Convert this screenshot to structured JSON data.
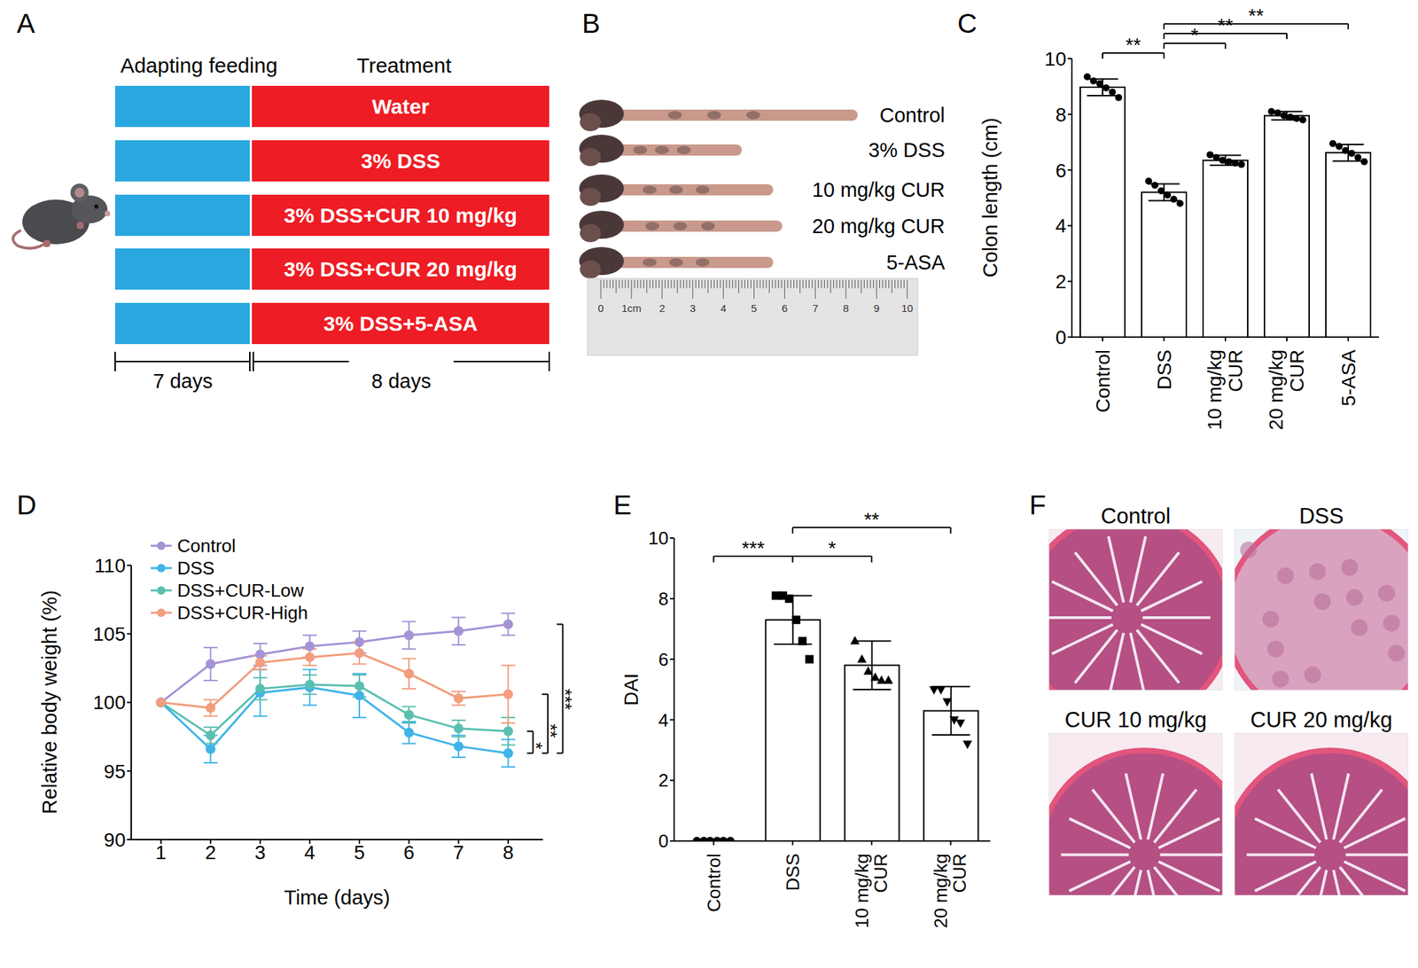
{
  "panel_labels": [
    "A",
    "B",
    "C",
    "D",
    "E",
    "F"
  ],
  "diagram": {
    "headers": [
      "Adapting feeding",
      "Treatment"
    ],
    "groups": [
      "Water",
      "3% DSS",
      "3% DSS+CUR 10 mg/kg",
      "3% DSS+CUR 20 mg/kg",
      "3% DSS+5-ASA"
    ],
    "durations": [
      "7 days",
      "8 days"
    ]
  },
  "photo": {
    "labels": [
      "Control",
      "3% DSS",
      "10 mg/kg CUR",
      "20 mg/kg CUR",
      "5-ASA"
    ],
    "ruler_labels": [
      "0",
      "1cm",
      "2",
      "3",
      "4",
      "5",
      "6",
      "7",
      "8",
      "9",
      "10"
    ]
  },
  "chart_data": [
    {
      "type": "bar",
      "y_label": "Colon length (cm)",
      "categories": [
        "Control",
        "DSS",
        "10 mg/kg CUR",
        "20 mg/kg CUR",
        "5-ASA"
      ],
      "values": [
        8.97,
        5.2,
        6.35,
        7.95,
        6.62
      ],
      "errors": [
        0.3,
        0.3,
        0.18,
        0.15,
        0.3
      ],
      "color": "#ffffff",
      "marker": "circle",
      "points": [
        {
          "category": "Control",
          "marker": "circle",
          "values": [
            9.35,
            9.2,
            9.1,
            8.95,
            8.8,
            8.6
          ]
        },
        {
          "category": "DSS",
          "marker": "circle",
          "values": [
            5.6,
            5.45,
            5.25,
            5.1,
            4.95,
            4.8
          ]
        },
        {
          "category": "10 mg/kg CUR",
          "marker": "circle",
          "values": [
            6.55,
            6.45,
            6.35,
            6.3,
            6.25,
            6.2
          ]
        },
        {
          "category": "20 mg/kg CUR",
          "marker": "circle",
          "values": [
            8.1,
            8.05,
            7.95,
            7.9,
            7.85,
            7.8
          ]
        },
        {
          "category": "5-ASA",
          "marker": "circle",
          "values": [
            6.95,
            6.85,
            6.7,
            6.6,
            6.45,
            6.3
          ]
        }
      ],
      "ylim": [
        0,
        10
      ],
      "yticks": [
        0,
        2,
        4,
        6,
        8,
        10
      ],
      "significance": [
        {
          "from": "Control",
          "to": "DSS",
          "label": "**"
        },
        {
          "from": "DSS",
          "to": "10 mg/kg CUR",
          "label": "*"
        },
        {
          "from": "DSS",
          "to": "20 mg/kg CUR",
          "label": "**"
        },
        {
          "from": "DSS",
          "to": "5-ASA",
          "label": "**"
        }
      ]
    },
    {
      "type": "line",
      "x_label": "Time (days)",
      "y_label": "Relative body weight (%)",
      "x": [
        1,
        2,
        3,
        4,
        5,
        6,
        7,
        8
      ],
      "series": [
        {
          "name": "Control",
          "color": "#a593d6",
          "values": [
            100,
            102.8,
            103.5,
            104.1,
            104.4,
            104.9,
            105.2,
            105.7
          ],
          "errors": [
            0,
            1.2,
            0.8,
            0.8,
            0.8,
            1.0,
            1.0,
            0.8
          ]
        },
        {
          "name": "DSS",
          "color": "#3fb4e8",
          "values": [
            100,
            96.6,
            100.7,
            101.1,
            100.5,
            97.8,
            96.8,
            96.3
          ],
          "errors": [
            0,
            1.0,
            1.7,
            1.3,
            1.6,
            0.8,
            0.8,
            1.0
          ]
        },
        {
          "name": "DSS+CUR-Low",
          "color": "#5bbfb0",
          "values": [
            100,
            97.6,
            101.0,
            101.3,
            101.2,
            99.1,
            98.1,
            97.9
          ],
          "errors": [
            0,
            0.6,
            0.8,
            0.7,
            0.8,
            0.6,
            0.6,
            1.0
          ]
        },
        {
          "name": "DSS+CUR-High",
          "color": "#f29d7e",
          "values": [
            100,
            99.6,
            102.9,
            103.3,
            103.6,
            102.1,
            100.3,
            100.6
          ],
          "errors": [
            0,
            0.6,
            0.5,
            0.6,
            0.8,
            1.1,
            0.5,
            2.1
          ]
        }
      ],
      "xlim": [
        0.4,
        8.7
      ],
      "xticks": [
        1,
        2,
        3,
        4,
        5,
        6,
        7,
        8
      ],
      "ylim": [
        90,
        110
      ],
      "yticks": [
        90,
        95,
        100,
        105,
        110
      ],
      "legend": "upper left",
      "marker": "circle",
      "significance": [
        {
          "from": "DSS+CUR-Low",
          "to": "DSS",
          "label": "*"
        },
        {
          "from": "DSS+CUR-High",
          "to": "DSS",
          "label": "**"
        },
        {
          "from": "Control",
          "to": "DSS",
          "label": "***"
        }
      ]
    },
    {
      "type": "bar",
      "y_label": "DAI",
      "categories": [
        "Control",
        "DSS",
        "10 mg/kg CUR",
        "20 mg/kg CUR"
      ],
      "values": [
        0,
        7.3,
        5.8,
        4.3
      ],
      "errors": [
        0,
        0.8,
        0.8,
        0.8
      ],
      "color": "#ffffff",
      "points": [
        {
          "category": "Control",
          "marker": "circle",
          "values": [
            0,
            0,
            0,
            0,
            0,
            0
          ]
        },
        {
          "category": "DSS",
          "marker": "square",
          "values": [
            8.1,
            8.1,
            8.0,
            7.3,
            6.6,
            6.0
          ]
        },
        {
          "category": "10 mg/kg CUR",
          "marker": "triangle",
          "values": [
            6.6,
            6.0,
            5.6,
            5.4,
            5.3,
            5.3
          ]
        },
        {
          "category": "20 mg/kg CUR",
          "marker": "triangle_down",
          "values": [
            5.0,
            5.0,
            4.6,
            4.0,
            3.9,
            3.2
          ]
        }
      ],
      "ylim": [
        0,
        10
      ],
      "yticks": [
        0,
        2,
        4,
        6,
        8,
        10
      ],
      "significance": [
        {
          "from": "Control",
          "to": "DSS",
          "label": "***"
        },
        {
          "from": "DSS",
          "to": "10 mg/kg CUR",
          "label": "*"
        },
        {
          "from": "DSS",
          "to": "20 mg/kg CUR",
          "label": "**"
        }
      ]
    }
  ],
  "histology": {
    "titles": [
      "Control",
      "DSS",
      "CUR 10 mg/kg",
      "CUR 20 mg/kg"
    ]
  }
}
